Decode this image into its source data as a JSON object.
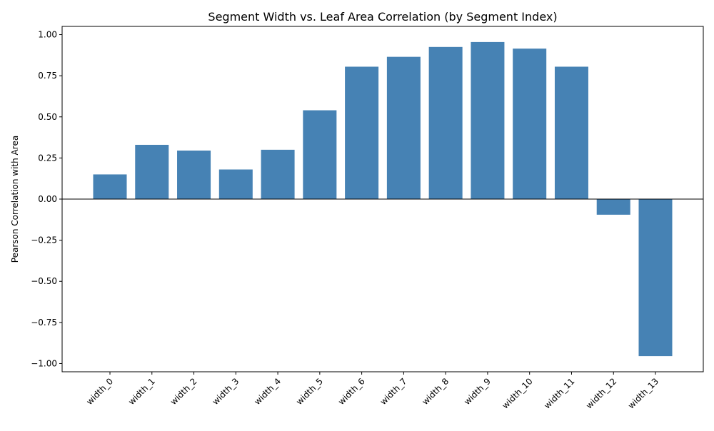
{
  "chart_data": {
    "type": "bar",
    "title": "Segment Width vs. Leaf Area Correlation (by Segment Index)",
    "xlabel": "",
    "ylabel": "Pearson Correlation with Area",
    "categories": [
      "width_0",
      "width_1",
      "width_2",
      "width_3",
      "width_4",
      "width_5",
      "width_6",
      "width_7",
      "width_8",
      "width_9",
      "width_10",
      "width_11",
      "width_12",
      "width_13"
    ],
    "values": [
      0.15,
      0.33,
      0.295,
      0.18,
      0.3,
      0.54,
      0.805,
      0.865,
      0.925,
      0.955,
      0.915,
      0.805,
      -0.095,
      -0.955
    ],
    "ylim": [
      -1.05,
      1.05
    ],
    "yticks": [
      1.0,
      0.75,
      0.5,
      0.25,
      0.0,
      -0.25,
      -0.5,
      -0.75,
      -1.0
    ],
    "ytick_labels": [
      "1.00",
      "0.75",
      "0.50",
      "0.25",
      "0.00",
      "−0.25",
      "−0.50",
      "−0.75",
      "−1.00"
    ],
    "bar_color": "#4682b4",
    "zero_line": true,
    "grid": false,
    "xtick_rotation_deg": 45
  }
}
